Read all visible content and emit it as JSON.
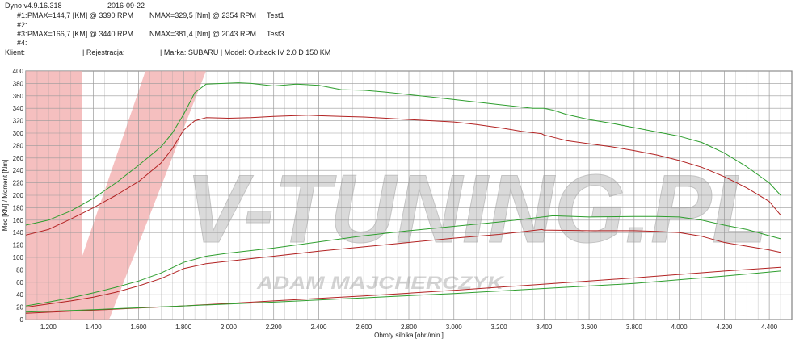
{
  "header": {
    "app_version": "Dyno v4.9.16.318",
    "date": "2016-09-22",
    "runs": [
      {
        "label": "#1:",
        "pmax": "PMAX=144,7 [KM] @ 3390 RPM",
        "nmax": "NMAX=329,5 [Nm] @ 2354 RPM",
        "name": "Test1"
      },
      {
        "label": "#2:",
        "pmax": "",
        "nmax": "",
        "name": ""
      },
      {
        "label": "#3:",
        "pmax": "PMAX=166,7 [KM] @ 3440 RPM",
        "nmax": "NMAX=381,4 [Nm] @ 2043 RPM",
        "name": "Test3"
      },
      {
        "label": "#4:",
        "pmax": "",
        "nmax": "",
        "name": ""
      }
    ],
    "client_label": "Klient:",
    "registration_label": "| Rejestracja:",
    "vehicle": "| Marka: SUBARU | Model: Outback IV 2.0 D 150 KM"
  },
  "watermark": {
    "brand": "V-TUNING.PL",
    "tagline": "ADAM MAJCHERCZYK"
  },
  "colors": {
    "test1": "#b22222",
    "test3": "#2e9e2e",
    "grid": "#9a9a9a",
    "plot_bg": "#ffffff"
  },
  "chart_data": {
    "type": "line",
    "xlabel": "Obroty silnika [obr./min.]",
    "ylabel": "Moc [KM] / Moment [Nm]",
    "xlim": [
      1100,
      4500
    ],
    "ylim": [
      0,
      400
    ],
    "x_ticks": [
      1200,
      1400,
      1600,
      1800,
      2000,
      2200,
      2400,
      2600,
      2800,
      3000,
      3200,
      3400,
      3600,
      3800,
      4000,
      4200,
      4400
    ],
    "x_tick_labels": [
      "1.200",
      "1.400",
      "1.600",
      "1.800",
      "2.000",
      "2.200",
      "2.400",
      "2.600",
      "2.800",
      "3.000",
      "3.200",
      "3.400",
      "3.600",
      "3.800",
      "4.000",
      "4.200",
      "4.400"
    ],
    "y_ticks": [
      0,
      20,
      40,
      60,
      80,
      100,
      120,
      140,
      160,
      180,
      200,
      220,
      240,
      260,
      280,
      300,
      320,
      340,
      360,
      380,
      400
    ],
    "grid": true,
    "series": [
      {
        "name": "Test1",
        "kind": "torque",
        "color": "#b22222",
        "x": [
          1100,
          1200,
          1300,
          1400,
          1500,
          1600,
          1700,
          1750,
          1800,
          1850,
          1900,
          2000,
          2100,
          2200,
          2354,
          2400,
          2500,
          2600,
          2700,
          2800,
          2900,
          3000,
          3100,
          3200,
          3300,
          3390,
          3400,
          3500,
          3600,
          3700,
          3800,
          3900,
          4000,
          4100,
          4200,
          4300,
          4400,
          4450
        ],
        "y": [
          136,
          145,
          162,
          180,
          200,
          222,
          252,
          275,
          305,
          320,
          325,
          324,
          325,
          327,
          329,
          328,
          327,
          326,
          324,
          322,
          320,
          318,
          314,
          309,
          303,
          299,
          297,
          288,
          283,
          278,
          272,
          265,
          256,
          245,
          230,
          212,
          190,
          168
        ]
      },
      {
        "name": "Test1",
        "kind": "power",
        "color": "#b22222",
        "x": [
          1100,
          1200,
          1300,
          1400,
          1500,
          1600,
          1700,
          1800,
          1900,
          2000,
          2200,
          2400,
          2600,
          2800,
          3000,
          3200,
          3390,
          3400,
          3600,
          3800,
          3900,
          4000,
          4100,
          4200,
          4300,
          4400,
          4450
        ],
        "y": [
          20,
          25,
          30,
          36,
          44,
          54,
          66,
          82,
          90,
          94,
          102,
          110,
          117,
          124,
          131,
          137,
          145,
          144,
          143,
          143,
          142,
          140,
          134,
          124,
          118,
          112,
          108
        ]
      },
      {
        "name": "Test3",
        "kind": "torque",
        "color": "#2e9e2e",
        "x": [
          1100,
          1200,
          1300,
          1400,
          1500,
          1600,
          1700,
          1750,
          1800,
          1850,
          1900,
          2043,
          2100,
          2200,
          2300,
          2400,
          2500,
          2600,
          2700,
          2800,
          2900,
          3000,
          3100,
          3200,
          3300,
          3350,
          3400,
          3440,
          3500,
          3600,
          3700,
          3800,
          3900,
          4000,
          4100,
          4200,
          4300,
          4400,
          4450
        ],
        "y": [
          152,
          160,
          175,
          195,
          220,
          248,
          278,
          300,
          330,
          365,
          379,
          381,
          380,
          376,
          379,
          377,
          370,
          369,
          366,
          362,
          358,
          354,
          350,
          346,
          342,
          340,
          340,
          337,
          330,
          322,
          316,
          309,
          302,
          295,
          285,
          268,
          246,
          220,
          200
        ]
      },
      {
        "name": "Test3",
        "kind": "power",
        "color": "#2e9e2e",
        "x": [
          1100,
          1200,
          1300,
          1400,
          1500,
          1600,
          1700,
          1800,
          1900,
          2000,
          2200,
          2400,
          2600,
          2800,
          3000,
          3200,
          3440,
          3600,
          3800,
          3900,
          4000,
          4100,
          4200,
          4300,
          4400,
          4450
        ],
        "y": [
          22,
          28,
          35,
          43,
          52,
          62,
          75,
          92,
          102,
          107,
          115,
          125,
          135,
          143,
          150,
          157,
          167,
          165,
          166,
          166,
          165,
          160,
          152,
          145,
          135,
          130
        ]
      },
      {
        "name": "Test1",
        "kind": "loss",
        "color": "#b22222",
        "x": [
          1100,
          1400,
          1800,
          2200,
          2600,
          3000,
          3400,
          3800,
          4200,
          4450
        ],
        "y": [
          10,
          15,
          22,
          30,
          38,
          47,
          57,
          67,
          78,
          84
        ]
      },
      {
        "name": "Test3",
        "kind": "loss",
        "color": "#2e9e2e",
        "x": [
          1100,
          1400,
          1800,
          2200,
          2600,
          3000,
          3400,
          3800,
          4200,
          4450
        ],
        "y": [
          12,
          16,
          22,
          28,
          35,
          42,
          50,
          58,
          70,
          78
        ]
      }
    ]
  }
}
